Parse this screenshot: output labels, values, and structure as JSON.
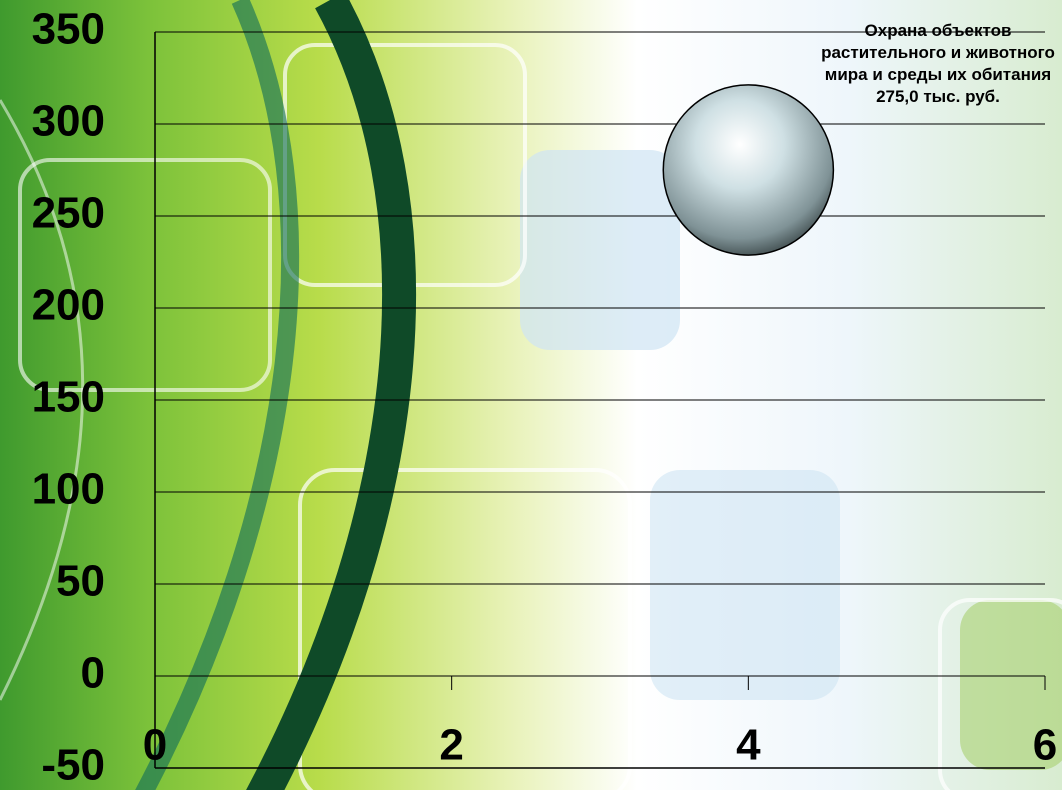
{
  "chart_data": {
    "type": "bubble",
    "series": [
      {
        "name": "Охрана объектов растительного и животного мира и среды их обитания",
        "color": "#b8c8cc",
        "x": [
          4
        ],
        "values": [
          275
        ],
        "sizes": [
          275
        ],
        "value_labels": [
          "275,0 тыс. руб."
        ]
      }
    ],
    "xlim": [
      0,
      6
    ],
    "xticks": [
      0,
      2,
      4,
      6
    ],
    "ylim": [
      -50,
      350
    ],
    "yticks": [
      -50,
      0,
      50,
      100,
      150,
      200,
      250,
      300,
      350
    ],
    "grid": true
  }
}
